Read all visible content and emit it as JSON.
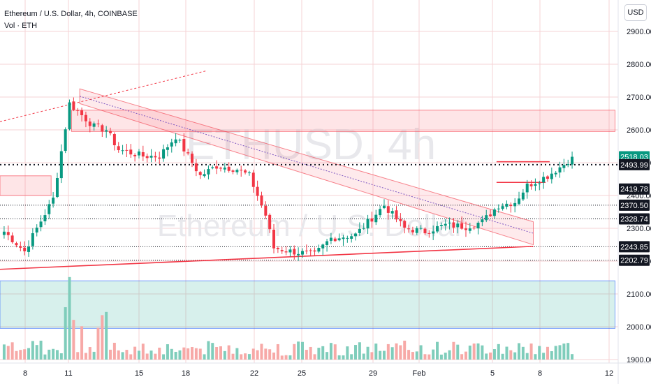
{
  "chart_data": {
    "type": "candlestick",
    "title": "Ethereum / U.S. Dollar, 4h, COINBASE",
    "volume_label": "Vol · ETH",
    "currency": "USD",
    "watermark": [
      "ETHUSD, 4h",
      "Ethereum / U.S. Dollar"
    ],
    "y_range": [
      1875,
      2945
    ],
    "y_ticks": [
      1900,
      2000,
      2100,
      2200,
      2300,
      2400,
      2500,
      2600,
      2700,
      2800,
      2900
    ],
    "y_tick_labels": [
      "1900.00",
      "2000.00",
      "2100.00",
      "2200.00",
      "2300.00",
      "2400.00",
      "2500.00",
      "2600.00",
      "2700.00",
      "2800.00",
      "2900.00"
    ],
    "x_tick_labels": [
      "8",
      "11",
      "15",
      "18",
      "22",
      "25",
      "29",
      "Feb",
      "5",
      "8",
      "12"
    ],
    "bars_visible": 140,
    "price_labels": [
      {
        "value": 2518.03,
        "text": "2518.03",
        "color": "#089981"
      },
      {
        "value": 2493.99,
        "text": "2493.99",
        "color": "#131722"
      },
      {
        "value": 2419.78,
        "text": "2419.78",
        "color": "#131722"
      },
      {
        "value": 2370.5,
        "text": "2370.50",
        "color": "#131722"
      },
      {
        "value": 2328.74,
        "text": "2328.74",
        "color": "#131722"
      },
      {
        "value": 2243.85,
        "text": "2243.85",
        "color": "#131722"
      },
      {
        "value": 2202.79,
        "text": "2202.79",
        "color": "#131722"
      }
    ],
    "key_closes": [
      {
        "bar": 0,
        "close": 2290
      },
      {
        "bar": 5,
        "close": 2230
      },
      {
        "bar": 8,
        "close": 2300
      },
      {
        "bar": 12,
        "close": 2390
      },
      {
        "bar": 16,
        "close": 2680
      },
      {
        "bar": 22,
        "close": 2610
      },
      {
        "bar": 25,
        "close": 2600
      },
      {
        "bar": 28,
        "close": 2540
      },
      {
        "bar": 34,
        "close": 2520
      },
      {
        "bar": 38,
        "close": 2520
      },
      {
        "bar": 42,
        "close": 2580
      },
      {
        "bar": 45,
        "close": 2520
      },
      {
        "bar": 48,
        "close": 2460
      },
      {
        "bar": 52,
        "close": 2490
      },
      {
        "bar": 57,
        "close": 2480
      },
      {
        "bar": 60,
        "close": 2460
      },
      {
        "bar": 64,
        "close": 2340
      },
      {
        "bar": 66,
        "close": 2240
      },
      {
        "bar": 70,
        "close": 2230
      },
      {
        "bar": 76,
        "close": 2220
      },
      {
        "bar": 80,
        "close": 2270
      },
      {
        "bar": 86,
        "close": 2280
      },
      {
        "bar": 93,
        "close": 2370
      },
      {
        "bar": 98,
        "close": 2300
      },
      {
        "bar": 103,
        "close": 2290
      },
      {
        "bar": 108,
        "close": 2310
      },
      {
        "bar": 113,
        "close": 2305
      },
      {
        "bar": 117,
        "close": 2320
      },
      {
        "bar": 121,
        "close": 2370
      },
      {
        "bar": 125,
        "close": 2380
      },
      {
        "bar": 128,
        "close": 2430
      },
      {
        "bar": 133,
        "close": 2460
      },
      {
        "bar": 137,
        "close": 2495
      },
      {
        "bar": 139,
        "close": 2518
      }
    ],
    "volume_range": [
      0,
      550
    ],
    "volume_spikes": [
      {
        "bar": 15,
        "vol": 330
      },
      {
        "bar": 16,
        "vol": 520
      },
      {
        "bar": 17,
        "vol": 250
      },
      {
        "bar": 19,
        "vol": 210
      },
      {
        "bar": 24,
        "vol": 280
      },
      {
        "bar": 25,
        "vol": 300
      },
      {
        "bar": 23,
        "vol": 200
      }
    ],
    "zones": [
      {
        "from": 2595,
        "to": 2660,
        "start_bar": 17,
        "end_bar": 150,
        "color": "#f7525f"
      },
      {
        "from": 2400,
        "to": 2460,
        "start_bar": -5,
        "end_bar": 12,
        "color": "#f7525f"
      },
      {
        "from": 1995,
        "to": 2140,
        "start_bar": -5,
        "end_bar": 150,
        "color": "#22ab94"
      }
    ],
    "dotted_levels": [
      2493.99,
      2370.5,
      2328.74,
      2243.85,
      2202.79
    ],
    "channel": {
      "start_bar": 19,
      "end_bar": 130,
      "upper_start": 2725,
      "upper_end": 2320,
      "lower_start": 2680,
      "lower_end": 2250
    },
    "trendline": {
      "start_bar": -5,
      "start_value": 2175,
      "end_bar": 130,
      "end_value": 2245
    },
    "dashed_line": {
      "start_bar": -5,
      "start_value": 2625,
      "end_bar": 50,
      "end_value": 2780
    },
    "resistance_marks": [
      {
        "start_bar": 121,
        "end_bar": 134,
        "value": 2503
      },
      {
        "start_bar": 121,
        "end_bar": 133,
        "value": 2440
      }
    ]
  }
}
